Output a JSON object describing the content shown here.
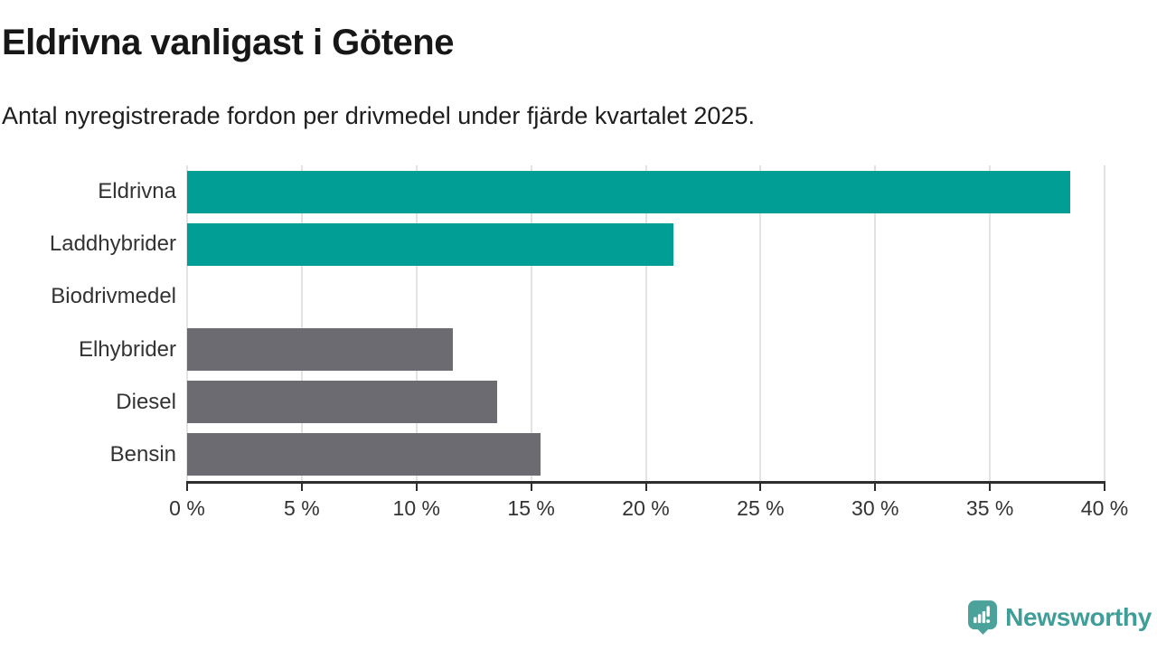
{
  "chart_data": {
    "type": "bar",
    "orientation": "horizontal",
    "title": "Eldrivna vanligast i Götene",
    "subtitle": "Antal nyregistrerade fordon per drivmedel under fjärde kvartalet 2025.",
    "categories": [
      "Eldrivna",
      "Laddhybrider",
      "Biodrivmedel",
      "Elhybrider",
      "Diesel",
      "Bensin"
    ],
    "values": [
      38.5,
      21.2,
      0,
      11.6,
      13.5,
      15.4
    ],
    "unit": "%",
    "series_colors": [
      "#009e94",
      "#009e94",
      "#009e94",
      "#6c6b72",
      "#6c6b72",
      "#6c6b72"
    ],
    "accent_teal": "#009e94",
    "neutral_gray": "#6c6b72",
    "xlim": [
      0,
      40
    ],
    "x_ticks": [
      0,
      5,
      10,
      15,
      20,
      25,
      30,
      35,
      40
    ],
    "x_tick_labels": [
      "0 %",
      "5 %",
      "10 %",
      "15 %",
      "20 %",
      "25 %",
      "30 %",
      "35 %",
      "40 %"
    ],
    "grid": "vertical",
    "grid_color": "#e3e3e3",
    "axis_color": "#2e2e2e",
    "tick_label_color": "#333333",
    "legend": "none",
    "xlabel": "",
    "ylabel": ""
  },
  "footer": {
    "brand": "Newsworthy",
    "brand_text_color": "#3f9e97",
    "brand_icon_color": "#4aa29b",
    "icon": "speech-bubble-with-bar-chart-and-exclamation"
  }
}
